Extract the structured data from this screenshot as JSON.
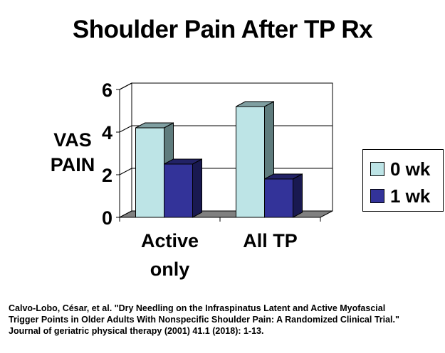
{
  "page": {
    "title": "Shoulder Pain After TP Rx",
    "citation_lines": [
      "Calvo-Lobo, César, et al. \"Dry Needling on the Infraspinatus Latent and Active Myofascial",
      "Trigger Points in Older Adults With Nonspecific Shoulder Pain: A Randomized Clinical Trial.\"",
      "Journal of geriatric physical therapy (2001) 41.1 (2018): 1-13."
    ]
  },
  "chart_data": {
    "type": "bar",
    "title": "Shoulder Pain After TP Rx",
    "ylabel_lines": [
      "VAS",
      "PAIN"
    ],
    "xlabel": "",
    "categories": [
      [
        "Active",
        "only"
      ],
      [
        "All TP"
      ]
    ],
    "series": [
      {
        "name": "0 wk",
        "values": [
          4.2,
          5.2
        ],
        "color": "#bde4e6",
        "side_color": "#5f7c7d",
        "top_color": "#7f9fa1"
      },
      {
        "name": "1 wk",
        "values": [
          2.5,
          1.8
        ],
        "color": "#333399",
        "side_color": "#191950",
        "top_color": "#222266"
      }
    ],
    "ylim": [
      0,
      6
    ],
    "yticks": [
      0,
      2,
      4,
      6
    ],
    "grid": true,
    "legend": "right",
    "floor_color": "#808080"
  }
}
